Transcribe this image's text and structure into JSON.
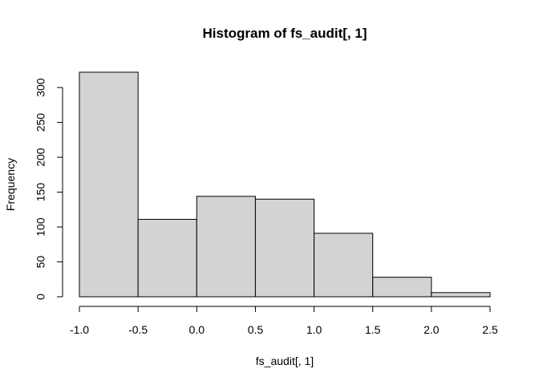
{
  "chart_data": {
    "type": "bar",
    "title": "Histogram of fs_audit[, 1]",
    "xlabel": "fs_audit[, 1]",
    "ylabel": "Frequency",
    "bins": [
      {
        "from": -1.0,
        "to": -0.5,
        "count": 322
      },
      {
        "from": -0.5,
        "to": 0.0,
        "count": 111
      },
      {
        "from": 0.0,
        "to": 0.5,
        "count": 144
      },
      {
        "from": 0.5,
        "to": 1.0,
        "count": 140
      },
      {
        "from": 1.0,
        "to": 1.5,
        "count": 91
      },
      {
        "from": 1.5,
        "to": 2.0,
        "count": 28
      },
      {
        "from": 2.0,
        "to": 2.5,
        "count": 6
      }
    ],
    "xlim": [
      -1.0,
      2.5
    ],
    "ylim": [
      0,
      322
    ],
    "x_ticks": [
      -1.0,
      -0.5,
      0.0,
      0.5,
      1.0,
      1.5,
      2.0,
      2.5
    ],
    "x_tick_labels": [
      "-1.0",
      "-0.5",
      "0.0",
      "0.5",
      "1.0",
      "1.5",
      "2.0",
      "2.5"
    ],
    "y_ticks": [
      0,
      50,
      100,
      150,
      200,
      250,
      300
    ],
    "y_tick_labels": [
      "0",
      "50",
      "100",
      "150",
      "200",
      "250",
      "300"
    ],
    "grid": false,
    "legend": "none",
    "colors": {
      "bar_fill": "#d3d3d3",
      "bar_stroke": "#000000"
    }
  }
}
